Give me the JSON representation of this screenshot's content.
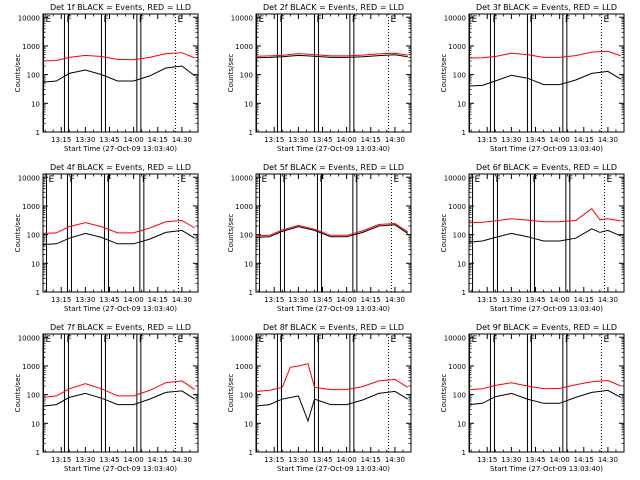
{
  "window": {
    "title": ""
  },
  "figure": {
    "shared_xticks": [
      "13:15",
      "13:30",
      "13:45",
      "14:00",
      "14:15",
      "14:30"
    ],
    "shared_yticks": [
      "1",
      "10",
      "100",
      "1000",
      "10000"
    ],
    "marker_letters": [
      "E",
      "F",
      "F",
      "F",
      "E"
    ],
    "colors": {
      "events": "#000000",
      "lld": "#ff0000",
      "axes": "#000000",
      "background": "#ffffff"
    }
  },
  "chart_data": [
    {
      "type": "line",
      "title": "Det 1f BLACK = Events, RED = LLD",
      "xlabel": "Start Time (27-Oct-09 13:03:40)",
      "ylabel": "Counts/sec",
      "xticks": [
        "13:15",
        "13:30",
        "13:45",
        "14:00",
        "14:15",
        "14:30"
      ],
      "yticks": [
        "1",
        "10",
        "100",
        "1000",
        "10000"
      ],
      "xlim": [
        "13:03:40",
        "14:40:00"
      ],
      "ylim": [
        1,
        13000
      ],
      "yscale": "log",
      "series": [
        {
          "name": "Events",
          "color": "#000000",
          "x": [
            "13:04",
            "13:12",
            "13:20",
            "13:30",
            "13:40",
            "13:50",
            "14:00",
            "14:10",
            "14:20",
            "14:30",
            "14:38"
          ],
          "y": [
            55,
            60,
            110,
            145,
            100,
            60,
            60,
            90,
            170,
            200,
            90
          ]
        },
        {
          "name": "LLD",
          "color": "#ff0000",
          "x": [
            "13:04",
            "13:12",
            "13:20",
            "13:30",
            "13:40",
            "13:50",
            "14:00",
            "14:10",
            "14:20",
            "14:30",
            "14:38"
          ],
          "y": [
            300,
            310,
            400,
            470,
            430,
            340,
            330,
            400,
            540,
            580,
            380
          ]
        }
      ]
    },
    {
      "type": "line",
      "title": "Det 2f BLACK = Events, RED = LLD",
      "xlabel": "Start Time (27-Oct-09 13:03:40)",
      "ylabel": "Counts/sec",
      "xticks": [
        "13:15",
        "13:30",
        "13:45",
        "14:00",
        "14:15",
        "14:30"
      ],
      "yticks": [
        "1",
        "10",
        "100",
        "1000",
        "10000"
      ],
      "xlim": [
        "13:03:40",
        "14:40:00"
      ],
      "ylim": [
        1,
        13000
      ],
      "yscale": "log",
      "series": [
        {
          "name": "Events",
          "color": "#000000",
          "x": [
            "13:04",
            "13:12",
            "13:20",
            "13:30",
            "13:40",
            "13:50",
            "14:00",
            "14:10",
            "14:20",
            "14:30",
            "14:38"
          ],
          "y": [
            390,
            400,
            420,
            470,
            440,
            400,
            400,
            420,
            460,
            490,
            420
          ]
        },
        {
          "name": "LLD",
          "color": "#ff0000",
          "x": [
            "13:04",
            "13:12",
            "13:20",
            "13:30",
            "13:40",
            "13:50",
            "14:00",
            "14:10",
            "14:20",
            "14:30",
            "14:38"
          ],
          "y": [
            440,
            450,
            470,
            540,
            500,
            450,
            450,
            480,
            530,
            560,
            480
          ]
        }
      ]
    },
    {
      "type": "line",
      "title": "Det 3f BLACK = Events, RED = LLD",
      "xlabel": "Start Time (27-Oct-09 13:03:40)",
      "ylabel": "Counts/sec",
      "xticks": [
        "13:15",
        "13:30",
        "13:45",
        "14:00",
        "14:15",
        "14:30"
      ],
      "yticks": [
        "1",
        "10",
        "100",
        "1000",
        "10000"
      ],
      "xlim": [
        "13:03:40",
        "14:40:00"
      ],
      "ylim": [
        1,
        13000
      ],
      "yscale": "log",
      "series": [
        {
          "name": "Events",
          "color": "#000000",
          "x": [
            "13:04",
            "13:12",
            "13:20",
            "13:30",
            "13:40",
            "13:50",
            "14:00",
            "14:10",
            "14:20",
            "14:30",
            "14:38"
          ],
          "y": [
            40,
            42,
            60,
            95,
            75,
            45,
            45,
            65,
            110,
            130,
            70
          ]
        },
        {
          "name": "LLD",
          "color": "#ff0000",
          "x": [
            "13:04",
            "13:12",
            "13:20",
            "13:30",
            "13:40",
            "13:50",
            "14:00",
            "14:10",
            "14:20",
            "14:30",
            "14:38"
          ],
          "y": [
            380,
            390,
            430,
            560,
            500,
            400,
            400,
            460,
            610,
            650,
            450
          ]
        }
      ]
    },
    {
      "type": "line",
      "title": "Det 4f BLACK = Events, RED = LLD",
      "xlabel": "Start Time (27-Oct-09 13:03:40)",
      "ylabel": "Counts/sec",
      "xticks": [
        "13:15",
        "13:30",
        "13:45",
        "14:00",
        "14:15",
        "14:30"
      ],
      "yticks": [
        "1",
        "10",
        "100",
        "1000",
        "10000"
      ],
      "xlim": [
        "13:03:40",
        "14:40:00"
      ],
      "ylim": [
        1,
        13000
      ],
      "yscale": "log",
      "series": [
        {
          "name": "Events",
          "color": "#000000",
          "x": [
            "13:04",
            "13:12",
            "13:20",
            "13:30",
            "13:40",
            "13:50",
            "14:00",
            "14:10",
            "14:20",
            "14:30",
            "14:38"
          ],
          "y": [
            45,
            48,
            75,
            110,
            80,
            48,
            48,
            70,
            120,
            140,
            75
          ]
        },
        {
          "name": "LLD",
          "color": "#ff0000",
          "x": [
            "13:04",
            "13:12",
            "13:20",
            "13:30",
            "13:40",
            "13:50",
            "14:00",
            "14:10",
            "14:20",
            "14:30",
            "14:38"
          ],
          "y": [
            110,
            115,
            190,
            260,
            190,
            115,
            115,
            170,
            280,
            310,
            170
          ]
        }
      ]
    },
    {
      "type": "line",
      "title": "Det 5f BLACK = Events, RED = LLD",
      "xlabel": "Start Time (27-Oct-09 13:03:40)",
      "ylabel": "Counts/sec",
      "xticks": [
        "13:15",
        "13:30",
        "13:45",
        "14:00",
        "14:15",
        "14:30"
      ],
      "yticks": [
        "1",
        "10",
        "100",
        "1000",
        "10000"
      ],
      "xlim": [
        "13:03:40",
        "14:40:00"
      ],
      "ylim": [
        1,
        13000
      ],
      "yscale": "log",
      "series": [
        {
          "name": "Events",
          "color": "#000000",
          "x": [
            "13:04",
            "13:12",
            "13:20",
            "13:30",
            "13:40",
            "13:50",
            "14:00",
            "14:10",
            "14:20",
            "14:30",
            "14:38"
          ],
          "y": [
            80,
            85,
            130,
            190,
            140,
            85,
            85,
            120,
            200,
            220,
            110
          ]
        },
        {
          "name": "LLD",
          "color": "#ff0000",
          "x": [
            "13:04",
            "13:12",
            "13:20",
            "13:30",
            "13:40",
            "13:50",
            "14:00",
            "14:10",
            "14:20",
            "14:30",
            "14:38"
          ],
          "y": [
            90,
            95,
            145,
            210,
            155,
            95,
            95,
            135,
            225,
            245,
            125
          ]
        }
      ]
    },
    {
      "type": "line",
      "title": "Det 6f BLACK = Events, RED = LLD",
      "xlabel": "Start Time (27-Oct-09 13:03:40)",
      "ylabel": "Counts/sec",
      "xticks": [
        "13:15",
        "13:30",
        "13:45",
        "14:00",
        "14:15",
        "14:30"
      ],
      "yticks": [
        "1",
        "10",
        "100",
        "1000",
        "10000"
      ],
      "xlim": [
        "13:03:40",
        "14:40:00"
      ],
      "ylim": [
        1,
        13000
      ],
      "yscale": "log",
      "series": [
        {
          "name": "Events",
          "color": "#000000",
          "x": [
            "13:04",
            "13:12",
            "13:20",
            "13:30",
            "13:40",
            "13:50",
            "14:00",
            "14:10",
            "14:20",
            "14:25",
            "14:30",
            "14:38"
          ],
          "y": [
            55,
            60,
            80,
            110,
            85,
            60,
            60,
            75,
            160,
            120,
            140,
            90
          ]
        },
        {
          "name": "LLD",
          "color": "#ff0000",
          "x": [
            "13:04",
            "13:12",
            "13:20",
            "13:30",
            "13:40",
            "13:50",
            "14:00",
            "14:10",
            "14:20",
            "14:25",
            "14:30",
            "14:38"
          ],
          "y": [
            260,
            270,
            300,
            360,
            320,
            280,
            280,
            310,
            800,
            330,
            360,
            300
          ]
        }
      ]
    },
    {
      "type": "line",
      "title": "Det 7f BLACK = Events, RED = LLD",
      "xlabel": "Start Time (27-Oct-09 13:03:40)",
      "ylabel": "Counts/sec",
      "xticks": [
        "13:15",
        "13:30",
        "13:45",
        "14:00",
        "14:15",
        "14:30"
      ],
      "yticks": [
        "1",
        "10",
        "100",
        "1000",
        "10000"
      ],
      "xlim": [
        "13:03:40",
        "14:40:00"
      ],
      "ylim": [
        1,
        13000
      ],
      "yscale": "log",
      "series": [
        {
          "name": "Events",
          "color": "#000000",
          "x": [
            "13:04",
            "13:12",
            "13:20",
            "13:30",
            "13:40",
            "13:50",
            "14:00",
            "14:10",
            "14:20",
            "14:30",
            "14:38"
          ],
          "y": [
            40,
            45,
            80,
            110,
            75,
            45,
            45,
            70,
            120,
            135,
            70
          ]
        },
        {
          "name": "LLD",
          "color": "#ff0000",
          "x": [
            "13:04",
            "13:12",
            "13:20",
            "13:30",
            "13:40",
            "13:50",
            "14:00",
            "14:10",
            "14:20",
            "14:30",
            "14:38"
          ],
          "y": [
            80,
            90,
            160,
            240,
            160,
            90,
            90,
            140,
            260,
            300,
            150
          ]
        }
      ]
    },
    {
      "type": "line",
      "title": "Det 8f BLACK = Events, RED = LLD",
      "xlabel": "Start Time (27-Oct-09 13:03:40)",
      "ylabel": "Counts/sec",
      "xticks": [
        "13:15",
        "13:30",
        "13:45",
        "14:00",
        "14:15",
        "14:30"
      ],
      "yticks": [
        "1",
        "10",
        "100",
        "1000",
        "10000"
      ],
      "xlim": [
        "13:03:40",
        "14:40:00"
      ],
      "ylim": [
        1,
        13000
      ],
      "yscale": "log",
      "series": [
        {
          "name": "Events",
          "color": "#000000",
          "x": [
            "13:04",
            "13:12",
            "13:20",
            "13:30",
            "13:36",
            "13:40",
            "13:50",
            "14:00",
            "14:10",
            "14:20",
            "14:30",
            "14:38"
          ],
          "y": [
            40,
            45,
            70,
            90,
            12,
            70,
            45,
            45,
            65,
            110,
            130,
            70
          ]
        },
        {
          "name": "LLD",
          "color": "#ff0000",
          "x": [
            "13:04",
            "13:12",
            "13:20",
            "13:25",
            "13:30",
            "13:36",
            "13:40",
            "13:50",
            "14:00",
            "14:10",
            "14:20",
            "14:30",
            "14:38"
          ],
          "y": [
            130,
            140,
            180,
            900,
            1000,
            1200,
            180,
            150,
            150,
            190,
            300,
            340,
            180
          ]
        }
      ]
    },
    {
      "type": "line",
      "title": "Det 9f BLACK = Events, RED = LLD",
      "xlabel": "Start Time (27-Oct-09 13:03:40)",
      "ylabel": "Counts/sec",
      "xticks": [
        "13:15",
        "13:30",
        "13:45",
        "14:00",
        "14:15",
        "14:30"
      ],
      "yticks": [
        "1",
        "10",
        "100",
        "1000",
        "10000"
      ],
      "xlim": [
        "13:03:40",
        "14:40:00"
      ],
      "ylim": [
        1,
        13000
      ],
      "yscale": "log",
      "series": [
        {
          "name": "Events",
          "color": "#000000",
          "x": [
            "13:04",
            "13:12",
            "13:20",
            "13:30",
            "13:40",
            "13:50",
            "14:00",
            "14:10",
            "14:20",
            "14:30",
            "14:38"
          ],
          "y": [
            45,
            50,
            85,
            110,
            70,
            50,
            50,
            80,
            120,
            140,
            80
          ]
        },
        {
          "name": "LLD",
          "color": "#ff0000",
          "x": [
            "13:04",
            "13:12",
            "13:20",
            "13:30",
            "13:40",
            "13:50",
            "14:00",
            "14:10",
            "14:20",
            "14:30",
            "14:38"
          ],
          "y": [
            150,
            160,
            210,
            260,
            200,
            160,
            165,
            220,
            280,
            310,
            200
          ]
        }
      ]
    }
  ]
}
